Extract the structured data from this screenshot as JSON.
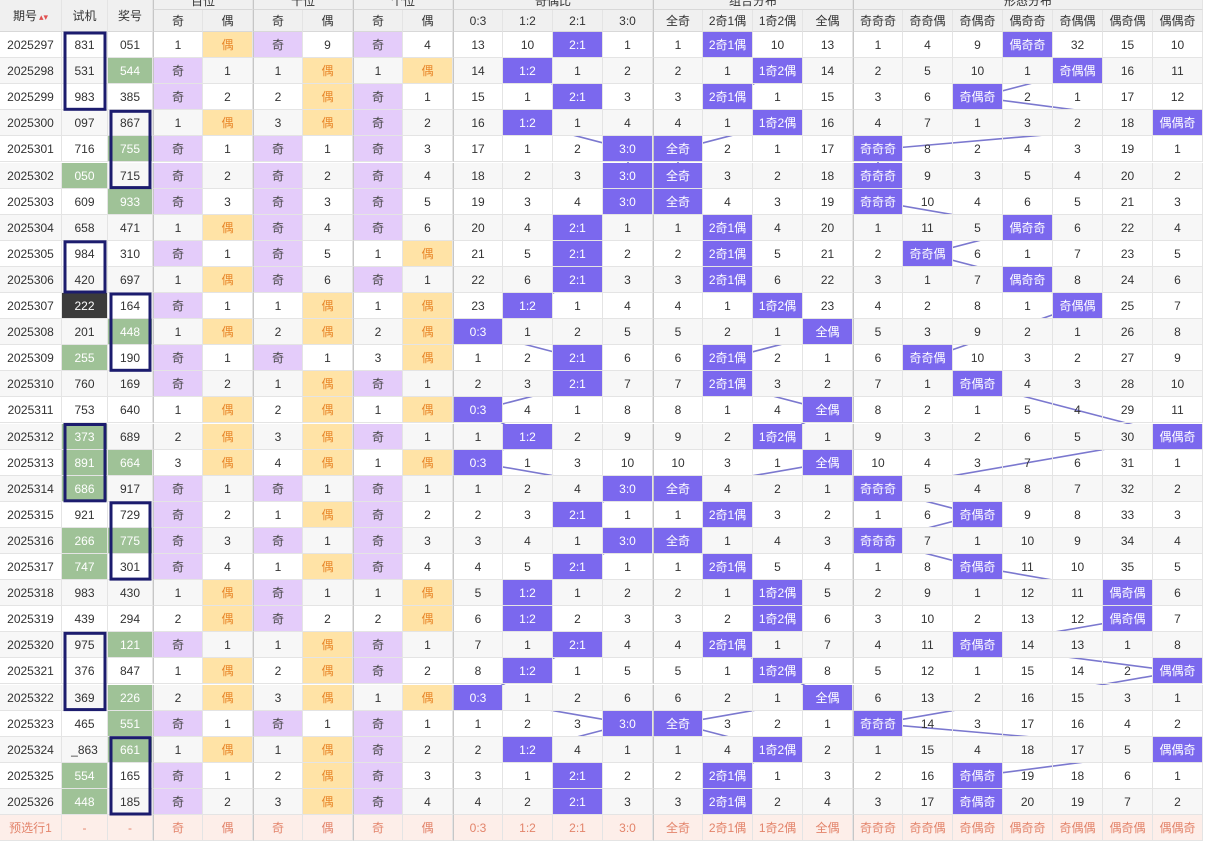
{
  "headers": {
    "period": "期号",
    "trial": "试机",
    "win": "奖号",
    "sort_icon": "▴▾",
    "groups": [
      "百位",
      "十位",
      "个位",
      "奇偶比",
      "组合分布",
      "形态分布"
    ],
    "odd": "奇",
    "even": "偶",
    "ratio": [
      "0:3",
      "1:2",
      "2:1",
      "3:0"
    ],
    "combo": [
      "全奇",
      "2奇1偶",
      "1奇2偶",
      "全偶"
    ],
    "shape": [
      "奇奇奇",
      "奇奇偶",
      "奇偶奇",
      "偶奇奇",
      "奇偶偶",
      "偶奇偶",
      "偶偶奇"
    ]
  },
  "rows": [
    {
      "p": "2025297",
      "t": "831",
      "w": "051",
      "b": [
        "1",
        "偶"
      ],
      "s": [
        "奇",
        "9"
      ],
      "g": [
        "奇",
        "4"
      ],
      "r": [
        "13",
        "10",
        "2:1",
        "1"
      ],
      "c": [
        "1",
        "2奇1偶",
        "10",
        "13"
      ],
      "f": [
        "1",
        "4",
        "9",
        "偶奇奇",
        "32",
        "15",
        "10"
      ]
    },
    {
      "p": "2025298",
      "t": "531",
      "w": "544",
      "b": [
        "奇",
        "1"
      ],
      "s": [
        "1",
        "偶"
      ],
      "g": [
        "1",
        "偶"
      ],
      "r": [
        "14",
        "1:2",
        "1",
        "2"
      ],
      "c": [
        "2",
        "1",
        "1奇2偶",
        "14"
      ],
      "f": [
        "2",
        "5",
        "10",
        "1",
        "奇偶偶",
        "16",
        "11"
      ]
    },
    {
      "p": "2025299",
      "t": "983",
      "w": "385",
      "b": [
        "奇",
        "2"
      ],
      "s": [
        "2",
        "偶"
      ],
      "g": [
        "奇",
        "1"
      ],
      "r": [
        "15",
        "1",
        "2:1",
        "3"
      ],
      "c": [
        "3",
        "2奇1偶",
        "1",
        "15"
      ],
      "f": [
        "3",
        "6",
        "奇偶奇",
        "2",
        "1",
        "17",
        "12"
      ]
    },
    {
      "p": "2025300",
      "t": "097",
      "w": "867",
      "b": [
        "1",
        "偶"
      ],
      "s": [
        "3",
        "偶"
      ],
      "g": [
        "奇",
        "2"
      ],
      "r": [
        "16",
        "1:2",
        "1",
        "4"
      ],
      "c": [
        "4",
        "1",
        "1奇2偶",
        "16"
      ],
      "f": [
        "4",
        "7",
        "1",
        "3",
        "2",
        "18",
        "偶偶奇"
      ]
    },
    {
      "p": "2025301",
      "t": "716",
      "w": "755",
      "b": [
        "奇",
        "1"
      ],
      "s": [
        "奇",
        "1"
      ],
      "g": [
        "奇",
        "3"
      ],
      "r": [
        "17",
        "1",
        "2",
        "3:0"
      ],
      "c": [
        "全奇",
        "2",
        "1",
        "17"
      ],
      "f": [
        "奇奇奇",
        "8",
        "2",
        "4",
        "3",
        "19",
        "1"
      ]
    },
    {
      "p": "2025302",
      "t": "050",
      "w": "715",
      "b": [
        "奇",
        "2"
      ],
      "s": [
        "奇",
        "2"
      ],
      "g": [
        "奇",
        "4"
      ],
      "r": [
        "18",
        "2",
        "3",
        "3:0"
      ],
      "c": [
        "全奇",
        "3",
        "2",
        "18"
      ],
      "f": [
        "奇奇奇",
        "9",
        "3",
        "5",
        "4",
        "20",
        "2"
      ]
    },
    {
      "p": "2025303",
      "t": "609",
      "w": "933",
      "b": [
        "奇",
        "3"
      ],
      "s": [
        "奇",
        "3"
      ],
      "g": [
        "奇",
        "5"
      ],
      "r": [
        "19",
        "3",
        "4",
        "3:0"
      ],
      "c": [
        "全奇",
        "4",
        "3",
        "19"
      ],
      "f": [
        "奇奇奇",
        "10",
        "4",
        "6",
        "5",
        "21",
        "3"
      ]
    },
    {
      "p": "2025304",
      "t": "658",
      "w": "471",
      "b": [
        "1",
        "偶"
      ],
      "s": [
        "奇",
        "4"
      ],
      "g": [
        "奇",
        "6"
      ],
      "r": [
        "20",
        "4",
        "2:1",
        "1"
      ],
      "c": [
        "1",
        "2奇1偶",
        "4",
        "20"
      ],
      "f": [
        "1",
        "11",
        "5",
        "偶奇奇",
        "6",
        "22",
        "4"
      ]
    },
    {
      "p": "2025305",
      "t": "984",
      "w": "310",
      "b": [
        "奇",
        "1"
      ],
      "s": [
        "奇",
        "5"
      ],
      "g": [
        "1",
        "偶"
      ],
      "r": [
        "21",
        "5",
        "2:1",
        "2"
      ],
      "c": [
        "2",
        "2奇1偶",
        "5",
        "21"
      ],
      "f": [
        "2",
        "奇奇偶",
        "6",
        "1",
        "7",
        "23",
        "5"
      ]
    },
    {
      "p": "2025306",
      "t": "420",
      "w": "697",
      "b": [
        "1",
        "偶"
      ],
      "s": [
        "奇",
        "6"
      ],
      "g": [
        "奇",
        "1"
      ],
      "r": [
        "22",
        "6",
        "2:1",
        "3"
      ],
      "c": [
        "3",
        "2奇1偶",
        "6",
        "22"
      ],
      "f": [
        "3",
        "1",
        "7",
        "偶奇奇",
        "8",
        "24",
        "6"
      ]
    },
    {
      "p": "2025307",
      "t": "222",
      "w": "164",
      "b": [
        "奇",
        "1"
      ],
      "s": [
        "1",
        "偶"
      ],
      "g": [
        "1",
        "偶"
      ],
      "r": [
        "23",
        "1:2",
        "1",
        "4"
      ],
      "c": [
        "4",
        "1",
        "1奇2偶",
        "23"
      ],
      "f": [
        "4",
        "2",
        "8",
        "1",
        "奇偶偶",
        "25",
        "7"
      ]
    },
    {
      "p": "2025308",
      "t": "201",
      "w": "448",
      "b": [
        "1",
        "偶"
      ],
      "s": [
        "2",
        "偶"
      ],
      "g": [
        "2",
        "偶"
      ],
      "r": [
        "0:3",
        "1",
        "2",
        "5"
      ],
      "c": [
        "5",
        "2",
        "1",
        "全偶"
      ],
      "f": [
        "5",
        "3",
        "9",
        "2",
        "1",
        "26",
        "8"
      ]
    },
    {
      "p": "2025309",
      "t": "255",
      "w": "190",
      "b": [
        "奇",
        "1"
      ],
      "s": [
        "奇",
        "1"
      ],
      "g": [
        "3",
        "偶"
      ],
      "r": [
        "1",
        "2",
        "2:1",
        "6"
      ],
      "c": [
        "6",
        "2奇1偶",
        "2",
        "1"
      ],
      "f": [
        "6",
        "奇奇偶",
        "10",
        "3",
        "2",
        "27",
        "9"
      ]
    },
    {
      "p": "2025310",
      "t": "760",
      "w": "169",
      "b": [
        "奇",
        "2"
      ],
      "s": [
        "1",
        "偶"
      ],
      "g": [
        "奇",
        "1"
      ],
      "r": [
        "2",
        "3",
        "2:1",
        "7"
      ],
      "c": [
        "7",
        "2奇1偶",
        "3",
        "2"
      ],
      "f": [
        "7",
        "1",
        "奇偶奇",
        "4",
        "3",
        "28",
        "10"
      ]
    },
    {
      "p": "2025311",
      "t": "753",
      "w": "640",
      "b": [
        "1",
        "偶"
      ],
      "s": [
        "2",
        "偶"
      ],
      "g": [
        "1",
        "偶"
      ],
      "r": [
        "0:3",
        "4",
        "1",
        "8"
      ],
      "c": [
        "8",
        "1",
        "4",
        "全偶"
      ],
      "f": [
        "8",
        "2",
        "1",
        "5",
        "4",
        "29",
        "11"
      ]
    },
    {
      "p": "2025312",
      "t": "373",
      "w": "689",
      "b": [
        "2",
        "偶"
      ],
      "s": [
        "3",
        "偶"
      ],
      "g": [
        "奇",
        "1"
      ],
      "r": [
        "1",
        "1:2",
        "2",
        "9"
      ],
      "c": [
        "9",
        "2",
        "1奇2偶",
        "1"
      ],
      "f": [
        "9",
        "3",
        "2",
        "6",
        "5",
        "30",
        "偶偶奇"
      ]
    },
    {
      "p": "2025313",
      "t": "891",
      "w": "664",
      "b": [
        "3",
        "偶"
      ],
      "s": [
        "4",
        "偶"
      ],
      "g": [
        "1",
        "偶"
      ],
      "r": [
        "0:3",
        "1",
        "3",
        "10"
      ],
      "c": [
        "10",
        "3",
        "1",
        "全偶"
      ],
      "f": [
        "10",
        "4",
        "3",
        "7",
        "6",
        "31",
        "1"
      ]
    },
    {
      "p": "2025314",
      "t": "686",
      "w": "917",
      "b": [
        "奇",
        "1"
      ],
      "s": [
        "奇",
        "1"
      ],
      "g": [
        "奇",
        "1"
      ],
      "r": [
        "1",
        "2",
        "4",
        "3:0"
      ],
      "c": [
        "全奇",
        "4",
        "2",
        "1"
      ],
      "f": [
        "奇奇奇",
        "5",
        "4",
        "8",
        "7",
        "32",
        "2"
      ]
    },
    {
      "p": "2025315",
      "t": "921",
      "w": "729",
      "b": [
        "奇",
        "2"
      ],
      "s": [
        "1",
        "偶"
      ],
      "g": [
        "奇",
        "2"
      ],
      "r": [
        "2",
        "3",
        "2:1",
        "1"
      ],
      "c": [
        "1",
        "2奇1偶",
        "3",
        "2"
      ],
      "f": [
        "1",
        "6",
        "奇偶奇",
        "9",
        "8",
        "33",
        "3"
      ]
    },
    {
      "p": "2025316",
      "t": "266",
      "w": "775",
      "b": [
        "奇",
        "3"
      ],
      "s": [
        "奇",
        "1"
      ],
      "g": [
        "奇",
        "3"
      ],
      "r": [
        "3",
        "4",
        "1",
        "3:0"
      ],
      "c": [
        "全奇",
        "1",
        "4",
        "3"
      ],
      "f": [
        "奇奇奇",
        "7",
        "1",
        "10",
        "9",
        "34",
        "4"
      ]
    },
    {
      "p": "2025317",
      "t": "747",
      "w": "301",
      "b": [
        "奇",
        "4"
      ],
      "s": [
        "1",
        "偶"
      ],
      "g": [
        "奇",
        "4"
      ],
      "r": [
        "4",
        "5",
        "2:1",
        "1"
      ],
      "c": [
        "1",
        "2奇1偶",
        "5",
        "4"
      ],
      "f": [
        "1",
        "8",
        "奇偶奇",
        "11",
        "10",
        "35",
        "5"
      ]
    },
    {
      "p": "2025318",
      "t": "983",
      "w": "430",
      "b": [
        "1",
        "偶"
      ],
      "s": [
        "奇",
        "1"
      ],
      "g": [
        "1",
        "偶"
      ],
      "r": [
        "5",
        "1:2",
        "1",
        "2"
      ],
      "c": [
        "2",
        "1",
        "1奇2偶",
        "5"
      ],
      "f": [
        "2",
        "9",
        "1",
        "12",
        "11",
        "偶奇偶",
        "6"
      ]
    },
    {
      "p": "2025319",
      "t": "439",
      "w": "294",
      "b": [
        "2",
        "偶"
      ],
      "s": [
        "奇",
        "2"
      ],
      "g": [
        "2",
        "偶"
      ],
      "r": [
        "6",
        "1:2",
        "2",
        "3"
      ],
      "c": [
        "3",
        "2",
        "1奇2偶",
        "6"
      ],
      "f": [
        "3",
        "10",
        "2",
        "13",
        "12",
        "偶奇偶",
        "7"
      ]
    },
    {
      "p": "2025320",
      "t": "975",
      "w": "121",
      "b": [
        "奇",
        "1"
      ],
      "s": [
        "1",
        "偶"
      ],
      "g": [
        "奇",
        "1"
      ],
      "r": [
        "7",
        "1",
        "2:1",
        "4"
      ],
      "c": [
        "4",
        "2奇1偶",
        "1",
        "7"
      ],
      "f": [
        "4",
        "11",
        "奇偶奇",
        "14",
        "13",
        "1",
        "8"
      ]
    },
    {
      "p": "2025321",
      "t": "376",
      "w": "847",
      "b": [
        "1",
        "偶"
      ],
      "s": [
        "2",
        "偶"
      ],
      "g": [
        "奇",
        "2"
      ],
      "r": [
        "8",
        "1:2",
        "1",
        "5"
      ],
      "c": [
        "5",
        "1",
        "1奇2偶",
        "8"
      ],
      "f": [
        "5",
        "12",
        "1",
        "15",
        "14",
        "2",
        "偶偶奇"
      ]
    },
    {
      "p": "2025322",
      "t": "369",
      "w": "226",
      "b": [
        "2",
        "偶"
      ],
      "s": [
        "3",
        "偶"
      ],
      "g": [
        "1",
        "偶"
      ],
      "r": [
        "0:3",
        "1",
        "2",
        "6"
      ],
      "c": [
        "6",
        "2",
        "1",
        "全偶"
      ],
      "f": [
        "6",
        "13",
        "2",
        "16",
        "15",
        "3",
        "1"
      ]
    },
    {
      "p": "2025323",
      "t": "465",
      "w": "551",
      "b": [
        "奇",
        "1"
      ],
      "s": [
        "奇",
        "1"
      ],
      "g": [
        "奇",
        "1"
      ],
      "r": [
        "1",
        "2",
        "3",
        "3:0"
      ],
      "c": [
        "全奇",
        "3",
        "2",
        "1"
      ],
      "f": [
        "奇奇奇",
        "14",
        "3",
        "17",
        "16",
        "4",
        "2"
      ]
    },
    {
      "p": "2025324",
      "t": "_863",
      "w": "661",
      "b": [
        "1",
        "偶"
      ],
      "s": [
        "1",
        "偶"
      ],
      "g": [
        "奇",
        "2"
      ],
      "r": [
        "2",
        "1:2",
        "4",
        "1"
      ],
      "c": [
        "1",
        "4",
        "1奇2偶",
        "2"
      ],
      "f": [
        "1",
        "15",
        "4",
        "18",
        "17",
        "5",
        "偶偶奇"
      ]
    },
    {
      "p": "2025325",
      "t": "554",
      "w": "165",
      "b": [
        "奇",
        "1"
      ],
      "s": [
        "2",
        "偶"
      ],
      "g": [
        "奇",
        "3"
      ],
      "r": [
        "3",
        "1",
        "2:1",
        "2"
      ],
      "c": [
        "2",
        "2奇1偶",
        "1",
        "3"
      ],
      "f": [
        "2",
        "16",
        "奇偶奇",
        "19",
        "18",
        "6",
        "1"
      ]
    },
    {
      "p": "2025326",
      "t": "448",
      "w": "185",
      "b": [
        "奇",
        "2"
      ],
      "s": [
        "3",
        "偶"
      ],
      "g": [
        "奇",
        "4"
      ],
      "r": [
        "4",
        "2",
        "2:1",
        "3"
      ],
      "c": [
        "3",
        "2奇1偶",
        "2",
        "4"
      ],
      "f": [
        "3",
        "17",
        "奇偶奇",
        "20",
        "19",
        "7",
        "2"
      ]
    }
  ],
  "footer": {
    "label": "预选行1",
    "trial": "-",
    "win": "-",
    "b": [
      "奇",
      "偶"
    ],
    "s": [
      "奇",
      "偶"
    ],
    "g": [
      "奇",
      "偶"
    ],
    "r": [
      "0:3",
      "1:2",
      "2:1",
      "3:0"
    ],
    "c": [
      "全奇",
      "2奇1偶",
      "1奇2偶",
      "全偶"
    ],
    "f": [
      "奇奇奇",
      "奇奇偶",
      "奇偶奇",
      "偶奇奇",
      "奇偶偶",
      "偶奇偶",
      "偶偶奇"
    ]
  },
  "trial_highlights": {
    "dark": [
      "2025307"
    ],
    "green": [
      "2025302",
      "2025309",
      "2025312",
      "2025313",
      "2025314",
      "2025316",
      "2025317",
      "2025325",
      "2025326"
    ]
  },
  "win_highlights": [
    "2025298",
    "2025301",
    "2025303",
    "2025308",
    "2025313",
    "2025316",
    "2025320",
    "2025322",
    "2025323",
    "2025324"
  ],
  "colors": {
    "odd_bg": "#e4ccfa",
    "even_bg": "#ffe3a6",
    "even_text": "#e8872a",
    "hit_bg": "#7b68ee",
    "hit_text": "#ffffff",
    "green_highlight": "#9fc297",
    "dark_highlight": "#3b3b3b",
    "box_border": "#1c1c6e",
    "trend_line": "#7b78cf",
    "footer_bg": "#fdeee9",
    "footer_text": "#e3846b"
  }
}
